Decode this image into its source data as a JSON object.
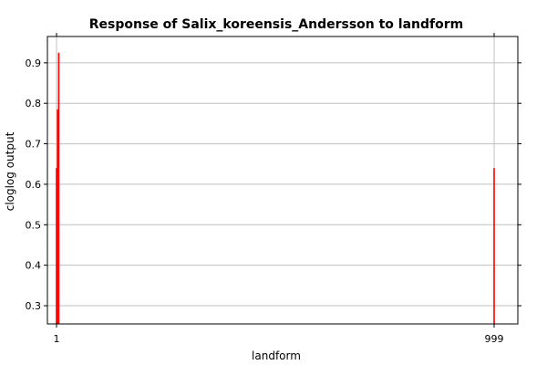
{
  "chart_data": {
    "type": "bar",
    "title": "Response of Salix_koreensis_Andersson to landform",
    "xlabel": "landform",
    "ylabel": "cloglog output",
    "x_ticks": [
      "1",
      "999"
    ],
    "y_ticks": [
      "0.3",
      "0.4",
      "0.5",
      "0.6",
      "0.7",
      "0.8",
      "0.9"
    ],
    "ylim": [
      0.255,
      0.965
    ],
    "grid": true,
    "series_color": "#ff0000",
    "bars": [
      {
        "x": 1,
        "value": 0.64
      },
      {
        "x": 2,
        "value": 0.785
      },
      {
        "x": 3,
        "value": 0.925
      },
      {
        "x": 999,
        "value": 0.64
      }
    ]
  }
}
